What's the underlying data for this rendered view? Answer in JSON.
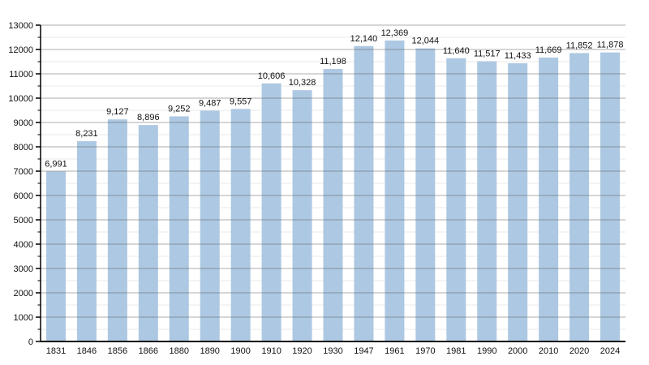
{
  "chart_data": {
    "type": "bar",
    "categories": [
      "1831",
      "1846",
      "1856",
      "1866",
      "1880",
      "1890",
      "1900",
      "1910",
      "1920",
      "1930",
      "1947",
      "1961",
      "1970",
      "1981",
      "1990",
      "2000",
      "2010",
      "2020",
      "2024"
    ],
    "values": [
      6991,
      8231,
      9127,
      8896,
      9252,
      9487,
      9557,
      10606,
      10328,
      11198,
      12140,
      12369,
      12044,
      11640,
      11517,
      11433,
      11669,
      11852,
      11878
    ],
    "value_labels": [
      "6,991",
      "8,231",
      "9,127",
      "8,896",
      "9,252",
      "9,487",
      "9,557",
      "10,606",
      "10,328",
      "11,198",
      "12,140",
      "12,369",
      "12,044",
      "11,640",
      "11,517",
      "11,433",
      "11,669",
      "11,852",
      "11,878"
    ],
    "y_tick_labels": [
      "0",
      "1000",
      "2000",
      "3000",
      "4000",
      "5000",
      "6000",
      "7000",
      "8000",
      "9000",
      "10000",
      "11000",
      "12000",
      "13000"
    ],
    "ylim": [
      0,
      13000
    ],
    "y_major_step": 1000,
    "y_minor_step": 500,
    "grid": true,
    "legend": "none",
    "colors": {
      "bar_fill": "#adc8e2",
      "major_gridline": "#b0b0b0",
      "minor_gridline": "#e8e8e8",
      "axis": "#000000",
      "text": "#111111"
    }
  }
}
